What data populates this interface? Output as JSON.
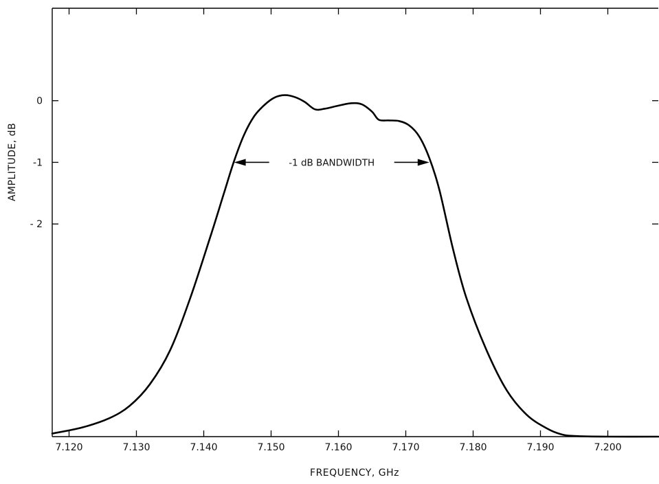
{
  "chart_data": {
    "type": "line",
    "title": "",
    "xlabel": "FREQUENCY, GHz",
    "ylabel": "AMPLITUDE, dB",
    "xlim": [
      7.1175,
      7.2075
    ],
    "ylim": [
      -5.45,
      1.5
    ],
    "x_ticks": [
      7.12,
      7.13,
      7.14,
      7.15,
      7.16,
      7.17,
      7.18,
      7.19,
      7.2
    ],
    "x_tick_labels": [
      "7.120",
      "7.130",
      "7.140",
      "7.150",
      "7.160",
      "7.170",
      "7.180",
      "7.190",
      "7.200"
    ],
    "y_ticks": [
      0,
      -1,
      -2
    ],
    "y_tick_labels": [
      "0",
      "-1",
      "- 2"
    ],
    "grid": false,
    "series": [
      {
        "x": [
          7.1175,
          7.122,
          7.126,
          7.129,
          7.132,
          7.135,
          7.138,
          7.141,
          7.143,
          7.1445,
          7.146,
          7.1475,
          7.149,
          7.1505,
          7.152,
          7.1535,
          7.155,
          7.1565,
          7.158,
          7.16,
          7.162,
          7.1635,
          7.165,
          7.166,
          7.1675,
          7.169,
          7.1705,
          7.172,
          7.1735,
          7.175,
          7.177,
          7.179,
          7.182,
          7.185,
          7.188,
          7.191,
          7.193,
          7.195,
          7.2,
          7.2075
        ],
        "y": [
          -5.4,
          -5.3,
          -5.15,
          -4.95,
          -4.6,
          -4.05,
          -3.2,
          -2.2,
          -1.5,
          -0.98,
          -0.55,
          -0.25,
          -0.07,
          0.05,
          0.09,
          0.06,
          -0.02,
          -0.14,
          -0.13,
          -0.08,
          -0.04,
          -0.06,
          -0.18,
          -0.31,
          -0.32,
          -0.33,
          -0.4,
          -0.58,
          -0.93,
          -1.45,
          -2.4,
          -3.2,
          -4.05,
          -4.7,
          -5.1,
          -5.32,
          -5.41,
          -5.44,
          -5.45,
          -5.45
        ]
      }
    ],
    "annotations": [
      {
        "text": "-1 dB BANDWIDTH",
        "x_start": 7.1445,
        "x_end": 7.1735,
        "y": -1
      }
    ]
  }
}
